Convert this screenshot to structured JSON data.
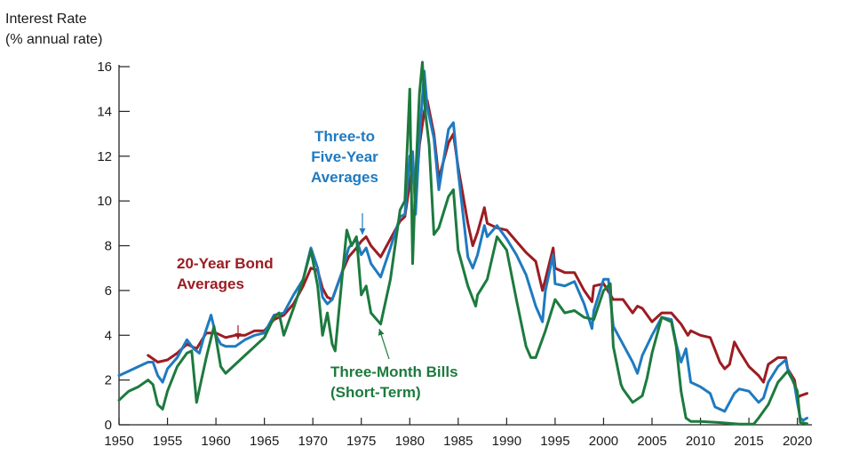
{
  "chart_data": {
    "type": "line",
    "ylabel_line1": "Interest Rate",
    "ylabel_line2": "(% annual rate)",
    "xlim": [
      1950,
      2021.5
    ],
    "ylim": [
      0,
      16
    ],
    "yticks": [
      0,
      2,
      4,
      6,
      8,
      10,
      12,
      14,
      16
    ],
    "xticks": [
      1950,
      1955,
      1960,
      1965,
      1970,
      1975,
      1980,
      1985,
      1990,
      1995,
      2000,
      2005,
      2010,
      2015,
      2020
    ],
    "colors": {
      "bond20": "#9c1c22",
      "mid35": "#1f7ac0",
      "bill3m": "#1d7a3e"
    },
    "annotations": {
      "mid": [
        "Three-to",
        "Five-Year",
        "Averages"
      ],
      "bond": [
        "20-Year Bond",
        "Averages"
      ],
      "bill": [
        "Three-Month Bills",
        "(Short-Term)"
      ]
    },
    "series": [
      {
        "key": "bond20",
        "x": [
          1953.0,
          1954.0,
          1955.0,
          1956.0,
          1957.0,
          1958.0,
          1959.0,
          1960.0,
          1961.0,
          1962.0,
          1963.0,
          1964.0,
          1965.0,
          1966.0,
          1967.0,
          1968.0,
          1969.0,
          1969.8,
          1970.5,
          1971.0,
          1971.5,
          1972.0,
          1973.0,
          1973.7,
          1974.5,
          1975.0,
          1975.5,
          1976.0,
          1977.0,
          1978.0,
          1979.0,
          1979.5,
          1980.0,
          1980.3,
          1980.6,
          1981.0,
          1981.5,
          1981.8,
          1982.5,
          1983.0,
          1984.0,
          1984.5,
          1985.0,
          1986.0,
          1986.5,
          1987.0,
          1987.7,
          1988.0,
          1989.0,
          1990.0,
          1991.0,
          1992.0,
          1993.0,
          1993.7,
          1994.0,
          1994.8,
          1995.0,
          1996.0,
          1997.0,
          1998.0,
          1998.8,
          1999.0,
          2000.0,
          2001.0,
          2002.0,
          2003.0,
          2003.5,
          2004.0,
          2005.0,
          2006.0,
          2007.0,
          2008.0,
          2008.7,
          2009.0,
          2010.0,
          2011.0,
          2012.0,
          2012.5,
          2013.0,
          2013.5,
          2014.0,
          2015.0,
          2016.0,
          2016.5,
          2017.0,
          2018.0,
          2018.8,
          2019.0,
          2019.7,
          2020.0,
          2020.3,
          2021.0
        ],
        "y": [
          3.1,
          2.8,
          2.9,
          3.2,
          3.6,
          3.4,
          4.1,
          4.1,
          3.9,
          4.0,
          4.0,
          4.2,
          4.2,
          4.7,
          4.9,
          5.4,
          6.2,
          7.0,
          6.9,
          6.1,
          5.7,
          5.6,
          6.8,
          7.5,
          7.9,
          8.2,
          8.4,
          8.0,
          7.5,
          8.3,
          9.1,
          9.3,
          10.8,
          11.6,
          10.2,
          12.5,
          14.0,
          14.5,
          13.0,
          11.0,
          12.6,
          13.0,
          11.5,
          9.0,
          8.0,
          8.6,
          9.7,
          9.0,
          8.8,
          8.7,
          8.2,
          7.7,
          7.3,
          6.0,
          6.5,
          7.9,
          7.0,
          6.8,
          6.8,
          6.0,
          5.5,
          6.2,
          6.3,
          5.6,
          5.6,
          5.0,
          5.3,
          5.2,
          4.6,
          5.0,
          5.0,
          4.5,
          4.0,
          4.2,
          4.0,
          3.9,
          2.8,
          2.5,
          2.7,
          3.7,
          3.3,
          2.6,
          2.2,
          1.9,
          2.7,
          3.0,
          3.0,
          2.5,
          2.0,
          1.2,
          1.3,
          1.4
        ]
      },
      {
        "key": "mid35",
        "x": [
          1950.0,
          1951.0,
          1952.0,
          1953.0,
          1953.5,
          1954.0,
          1954.5,
          1955.0,
          1956.0,
          1957.0,
          1957.7,
          1958.3,
          1958.8,
          1959.5,
          1960.0,
          1960.5,
          1961.0,
          1962.0,
          1963.0,
          1964.0,
          1965.0,
          1966.0,
          1967.0,
          1968.0,
          1969.0,
          1969.8,
          1970.5,
          1971.0,
          1971.5,
          1972.0,
          1973.0,
          1973.7,
          1974.5,
          1975.0,
          1975.5,
          1976.0,
          1977.0,
          1978.0,
          1979.0,
          1979.5,
          1980.0,
          1980.3,
          1980.6,
          1981.0,
          1981.5,
          1981.8,
          1982.5,
          1983.0,
          1984.0,
          1984.5,
          1985.0,
          1986.0,
          1986.5,
          1987.0,
          1987.7,
          1988.0,
          1989.0,
          1990.0,
          1991.0,
          1992.0,
          1993.0,
          1993.7,
          1994.0,
          1994.8,
          1995.0,
          1996.0,
          1997.0,
          1998.0,
          1998.8,
          1999.0,
          2000.0,
          2000.5,
          2001.0,
          2002.0,
          2003.0,
          2003.5,
          2004.0,
          2005.0,
          2006.0,
          2007.0,
          2007.5,
          2008.0,
          2008.5,
          2009.0,
          2010.0,
          2011.0,
          2011.5,
          2012.0,
          2012.5,
          2013.0,
          2013.5,
          2014.0,
          2015.0,
          2016.0,
          2016.5,
          2017.0,
          2018.0,
          2018.8,
          2019.0,
          2019.7,
          2020.0,
          2020.3,
          2020.6,
          2021.0
        ],
        "y": [
          2.2,
          2.4,
          2.6,
          2.8,
          2.8,
          2.2,
          1.9,
          2.5,
          3.0,
          3.8,
          3.4,
          3.2,
          4.0,
          4.9,
          4.0,
          3.6,
          3.5,
          3.5,
          3.8,
          4.0,
          4.1,
          4.9,
          5.0,
          5.8,
          6.5,
          7.9,
          7.0,
          5.7,
          5.4,
          5.6,
          6.8,
          7.9,
          8.3,
          7.6,
          7.9,
          7.2,
          6.6,
          7.9,
          9.3,
          9.4,
          12.0,
          12.2,
          9.4,
          12.8,
          15.8,
          14.2,
          12.8,
          10.5,
          13.2,
          13.5,
          11.3,
          7.5,
          7.0,
          7.6,
          8.9,
          8.4,
          8.9,
          8.3,
          7.6,
          6.7,
          5.3,
          4.6,
          6.0,
          7.6,
          6.3,
          6.2,
          6.4,
          5.4,
          4.3,
          5.1,
          6.5,
          6.5,
          4.4,
          3.6,
          2.8,
          2.3,
          3.1,
          4.0,
          4.8,
          4.7,
          3.6,
          2.8,
          3.4,
          1.9,
          1.7,
          1.4,
          0.8,
          0.7,
          0.6,
          1.0,
          1.4,
          1.6,
          1.5,
          1.0,
          1.2,
          1.9,
          2.6,
          2.9,
          2.5,
          1.8,
          1.0,
          0.3,
          0.2,
          0.3
        ]
      },
      {
        "key": "bill3m",
        "x": [
          1950.0,
          1951.0,
          1952.0,
          1953.0,
          1953.5,
          1954.0,
          1954.5,
          1955.0,
          1956.0,
          1957.0,
          1957.5,
          1958.0,
          1958.5,
          1959.0,
          1959.8,
          1960.5,
          1961.0,
          1962.0,
          1963.0,
          1964.0,
          1965.0,
          1966.0,
          1966.5,
          1967.0,
          1968.0,
          1969.0,
          1969.8,
          1970.5,
          1971.0,
          1971.5,
          1972.0,
          1972.3,
          1973.0,
          1973.5,
          1974.0,
          1974.5,
          1975.0,
          1975.5,
          1976.0,
          1977.0,
          1978.0,
          1979.0,
          1979.5,
          1980.0,
          1980.3,
          1980.6,
          1981.0,
          1981.3,
          1981.6,
          1982.0,
          1982.5,
          1983.0,
          1984.0,
          1984.5,
          1985.0,
          1986.0,
          1986.8,
          1987.0,
          1988.0,
          1989.0,
          1990.0,
          1991.0,
          1992.0,
          1992.5,
          1993.0,
          1994.0,
          1995.0,
          1996.0,
          1997.0,
          1998.0,
          1999.0,
          2000.0,
          2000.7,
          2001.0,
          2001.8,
          2002.0,
          2003.0,
          2004.0,
          2004.5,
          2005.0,
          2006.0,
          2007.0,
          2007.5,
          2008.0,
          2008.5,
          2009.0,
          2010.0,
          2012.0,
          2014.0,
          2015.5,
          2016.0,
          2017.0,
          2018.0,
          2019.0,
          2019.5,
          2020.0,
          2020.3,
          2021.0
        ],
        "y": [
          1.1,
          1.5,
          1.7,
          2.0,
          1.8,
          0.9,
          0.7,
          1.5,
          2.6,
          3.2,
          3.3,
          1.0,
          2.0,
          3.0,
          4.4,
          2.6,
          2.3,
          2.7,
          3.1,
          3.5,
          3.9,
          4.8,
          5.0,
          4.0,
          5.2,
          6.5,
          7.8,
          6.2,
          4.0,
          5.0,
          3.6,
          3.3,
          6.5,
          8.7,
          8.0,
          8.4,
          5.8,
          6.2,
          5.0,
          4.5,
          6.5,
          9.6,
          10.0,
          15.0,
          7.2,
          11.0,
          14.8,
          16.2,
          14.0,
          12.5,
          8.5,
          8.8,
          10.2,
          10.5,
          7.8,
          6.2,
          5.3,
          5.8,
          6.5,
          8.4,
          7.8,
          5.6,
          3.5,
          3.0,
          3.0,
          4.2,
          5.6,
          5.0,
          5.1,
          4.8,
          4.7,
          6.0,
          6.3,
          3.5,
          1.8,
          1.6,
          1.0,
          1.3,
          2.1,
          3.2,
          4.8,
          4.6,
          3.5,
          1.5,
          0.3,
          0.15,
          0.15,
          0.1,
          0.03,
          0.03,
          0.3,
          0.9,
          1.9,
          2.4,
          2.0,
          1.5,
          0.1,
          0.05
        ]
      }
    ]
  }
}
